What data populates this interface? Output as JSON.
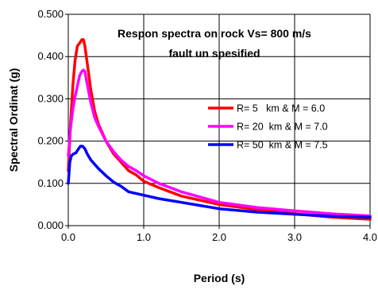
{
  "chart_data": {
    "type": "line",
    "title_lines": [
      "Respon spectra on rock Vs= 800 m/s",
      "fault un spesified"
    ],
    "xlabel": "Period (s)",
    "ylabel": "Spectral Ordinat (g)",
    "xlim": [
      0,
      4
    ],
    "ylim": [
      0,
      0.5
    ],
    "x_ticks": [
      "0.0",
      "1.0",
      "2.0",
      "3.0",
      "4.0"
    ],
    "y_ticks": [
      "0.000",
      "0.100",
      "0.200",
      "0.300",
      "0.400",
      "0.500"
    ],
    "grid": "major vertical and horizontal gridlines",
    "legend_position": "right, inside plot",
    "series": [
      {
        "name": "R= 5   km & M = 6.0",
        "color": "#ff0000",
        "points": [
          [
            0.0,
            0.13
          ],
          [
            0.03,
            0.24
          ],
          [
            0.06,
            0.33
          ],
          [
            0.09,
            0.39
          ],
          [
            0.12,
            0.425
          ],
          [
            0.15,
            0.432
          ],
          [
            0.18,
            0.44
          ],
          [
            0.2,
            0.44
          ],
          [
            0.22,
            0.425
          ],
          [
            0.25,
            0.385
          ],
          [
            0.3,
            0.32
          ],
          [
            0.35,
            0.27
          ],
          [
            0.4,
            0.24
          ],
          [
            0.5,
            0.2
          ],
          [
            0.6,
            0.17
          ],
          [
            0.7,
            0.15
          ],
          [
            0.8,
            0.13
          ],
          [
            0.9,
            0.12
          ],
          [
            1.0,
            0.105
          ],
          [
            1.2,
            0.09
          ],
          [
            1.5,
            0.07
          ],
          [
            2.0,
            0.05
          ],
          [
            2.5,
            0.038
          ],
          [
            3.0,
            0.028
          ],
          [
            3.5,
            0.02
          ],
          [
            4.0,
            0.015
          ]
        ]
      },
      {
        "name": "R= 20  km & M = 7.0",
        "color": "#ff00ff",
        "points": [
          [
            0.0,
            0.165
          ],
          [
            0.03,
            0.23
          ],
          [
            0.06,
            0.275
          ],
          [
            0.09,
            0.305
          ],
          [
            0.12,
            0.33
          ],
          [
            0.15,
            0.355
          ],
          [
            0.18,
            0.365
          ],
          [
            0.2,
            0.368
          ],
          [
            0.22,
            0.365
          ],
          [
            0.25,
            0.335
          ],
          [
            0.3,
            0.29
          ],
          [
            0.35,
            0.255
          ],
          [
            0.4,
            0.235
          ],
          [
            0.5,
            0.2
          ],
          [
            0.6,
            0.175
          ],
          [
            0.7,
            0.155
          ],
          [
            0.8,
            0.14
          ],
          [
            0.9,
            0.13
          ],
          [
            1.0,
            0.118
          ],
          [
            1.2,
            0.1
          ],
          [
            1.5,
            0.08
          ],
          [
            2.0,
            0.055
          ],
          [
            2.5,
            0.043
          ],
          [
            3.0,
            0.035
          ],
          [
            3.5,
            0.028
          ],
          [
            4.0,
            0.023
          ]
        ]
      },
      {
        "name": "R= 50  km & M = 7.5",
        "color": "#0000ff",
        "points": [
          [
            0.0,
            0.1
          ],
          [
            0.02,
            0.15
          ],
          [
            0.04,
            0.165
          ],
          [
            0.07,
            0.17
          ],
          [
            0.1,
            0.172
          ],
          [
            0.13,
            0.18
          ],
          [
            0.16,
            0.188
          ],
          [
            0.19,
            0.188
          ],
          [
            0.22,
            0.182
          ],
          [
            0.25,
            0.17
          ],
          [
            0.3,
            0.155
          ],
          [
            0.4,
            0.135
          ],
          [
            0.5,
            0.118
          ],
          [
            0.6,
            0.103
          ],
          [
            0.7,
            0.093
          ],
          [
            0.8,
            0.08
          ],
          [
            0.9,
            0.076
          ],
          [
            1.0,
            0.072
          ],
          [
            1.2,
            0.064
          ],
          [
            1.5,
            0.055
          ],
          [
            2.0,
            0.04
          ],
          [
            2.5,
            0.032
          ],
          [
            3.0,
            0.027
          ],
          [
            3.5,
            0.022
          ],
          [
            4.0,
            0.02
          ]
        ]
      }
    ]
  }
}
